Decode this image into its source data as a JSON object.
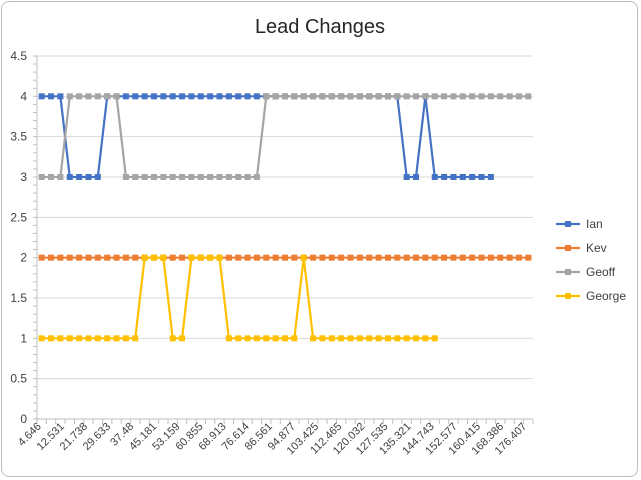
{
  "chart_data": {
    "type": "line",
    "title": "Lead Changes",
    "xlabel": "",
    "ylabel": "",
    "ylim": [
      0,
      4.5
    ],
    "y_ticks": [
      "0",
      "0.5",
      "1",
      "1.5",
      "2",
      "2.5",
      "3",
      "3.5",
      "4",
      "4.5"
    ],
    "grid": true,
    "legend_position": "right",
    "x_tick_labels": [
      "4.646",
      "12.531",
      "21.738",
      "29.633",
      "37.48",
      "45.181",
      "53.159",
      "60.855",
      "68.913",
      "76.614",
      "86.561",
      "94.877",
      "103.425",
      "112.465",
      "120.032",
      "127.535",
      "135.321",
      "144.743",
      "152.577",
      "160.415",
      "168.386",
      "176.407"
    ],
    "series": [
      {
        "name": "Ian",
        "color": "#4472C4",
        "values": [
          4,
          4,
          4,
          3,
          3,
          3,
          3,
          4,
          4,
          4,
          4,
          4,
          4,
          4,
          4,
          4,
          4,
          4,
          4,
          4,
          4,
          4,
          4,
          4,
          4,
          4,
          4,
          4,
          4,
          4,
          4,
          4,
          4,
          4,
          4,
          4,
          4,
          4,
          4,
          3,
          3,
          4,
          3,
          3,
          3,
          3,
          3,
          3,
          3
        ]
      },
      {
        "name": "Kev",
        "color": "#ED7D31",
        "values": [
          2,
          2,
          2,
          2,
          2,
          2,
          2,
          2,
          2,
          2,
          2,
          2,
          2,
          2,
          2,
          2,
          2,
          2,
          2,
          2,
          2,
          2,
          2,
          2,
          2,
          2,
          2,
          2,
          2,
          2,
          2,
          2,
          2,
          2,
          2,
          2,
          2,
          2,
          2,
          2,
          2,
          2,
          2,
          2,
          2,
          2,
          2,
          2,
          2,
          2,
          2,
          2,
          2
        ]
      },
      {
        "name": "Geoff",
        "color": "#A5A5A5",
        "values": [
          3,
          3,
          3,
          4,
          4,
          4,
          4,
          4,
          4,
          3,
          3,
          3,
          3,
          3,
          3,
          3,
          3,
          3,
          3,
          3,
          3,
          3,
          3,
          3,
          4,
          4,
          4,
          4,
          4,
          4,
          4,
          4,
          4,
          4,
          4,
          4,
          4,
          4,
          4,
          4,
          4,
          4,
          4,
          4,
          4,
          4,
          4,
          4,
          4,
          4,
          4,
          4,
          4
        ]
      },
      {
        "name": "George",
        "color": "#FFC000",
        "values": [
          1,
          1,
          1,
          1,
          1,
          1,
          1,
          1,
          1,
          1,
          1,
          2,
          2,
          2,
          1,
          1,
          2,
          2,
          2,
          2,
          1,
          1,
          1,
          1,
          1,
          1,
          1,
          1,
          2,
          1,
          1,
          1,
          1,
          1,
          1,
          1,
          1,
          1,
          1,
          1,
          1,
          1,
          1
        ]
      }
    ]
  }
}
